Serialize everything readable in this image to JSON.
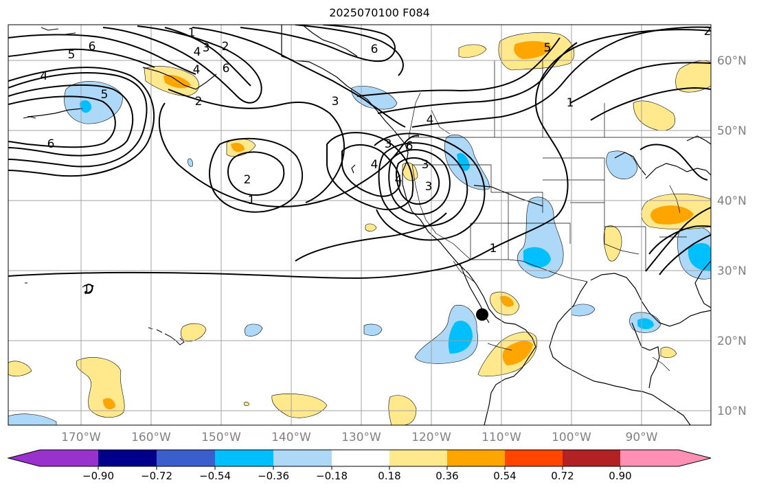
{
  "title": "2025070100 F084",
  "colors": {
    "neg_extreme": "#9932cc",
    "neg_5": "#00008b",
    "neg_4": "#3a5fcd",
    "neg_3": "#00bfff",
    "neg_2": "#add8f8",
    "neutral": "#ffffff",
    "pos_2": "#ffe98c",
    "pos_3": "#ffa500",
    "pos_4": "#ff4500",
    "pos_5": "#b22222",
    "pos_extreme": "#ff8fb4",
    "contour": "#000000",
    "grid": "#a0a0a0",
    "axis_label": "#808080"
  },
  "latitude_labels": [
    "60°N",
    "50°N",
    "40°N",
    "30°N",
    "20°N",
    "10°N"
  ],
  "longitude_labels": [
    "170°W",
    "160°W",
    "150°W",
    "140°W",
    "130°W",
    "120°W",
    "110°W",
    "100°W",
    "90°W"
  ],
  "colorbar": {
    "tick_labels": [
      "−0.90",
      "−0.72",
      "−0.54",
      "−0.36",
      "−0.18",
      "0.18",
      "0.36",
      "0.54",
      "0.72",
      "0.90"
    ]
  },
  "contour_labels": [
    "1",
    "2",
    "3",
    "4",
    "5",
    "6",
    "6",
    "5",
    "4",
    "6",
    "2",
    "4",
    "3",
    "6",
    "3",
    "4",
    "3",
    "1",
    "2",
    "1",
    "3",
    "4",
    "4",
    "5",
    "1",
    "6",
    "2",
    "1"
  ]
}
